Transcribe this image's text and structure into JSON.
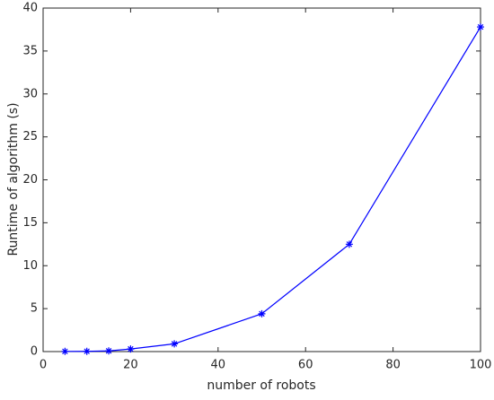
{
  "chart_data": {
    "type": "line",
    "x_label": "number of robots",
    "y_label": "Runtime of algorithm (s)",
    "x": [
      5,
      10,
      15,
      20,
      30,
      50,
      70,
      100
    ],
    "series": [
      {
        "color": "#0000ff",
        "values": [
          0.02,
          0.03,
          0.08,
          0.3,
          0.9,
          4.4,
          12.5,
          37.8
        ]
      }
    ],
    "xlim": [
      0,
      100
    ],
    "xticks": [
      0,
      20,
      40,
      60,
      80,
      100
    ],
    "ylim": [
      0,
      40
    ],
    "yticks": [
      0,
      5,
      10,
      15,
      20,
      25,
      30,
      35,
      40
    ],
    "grid": false,
    "marker": "asterisk"
  }
}
